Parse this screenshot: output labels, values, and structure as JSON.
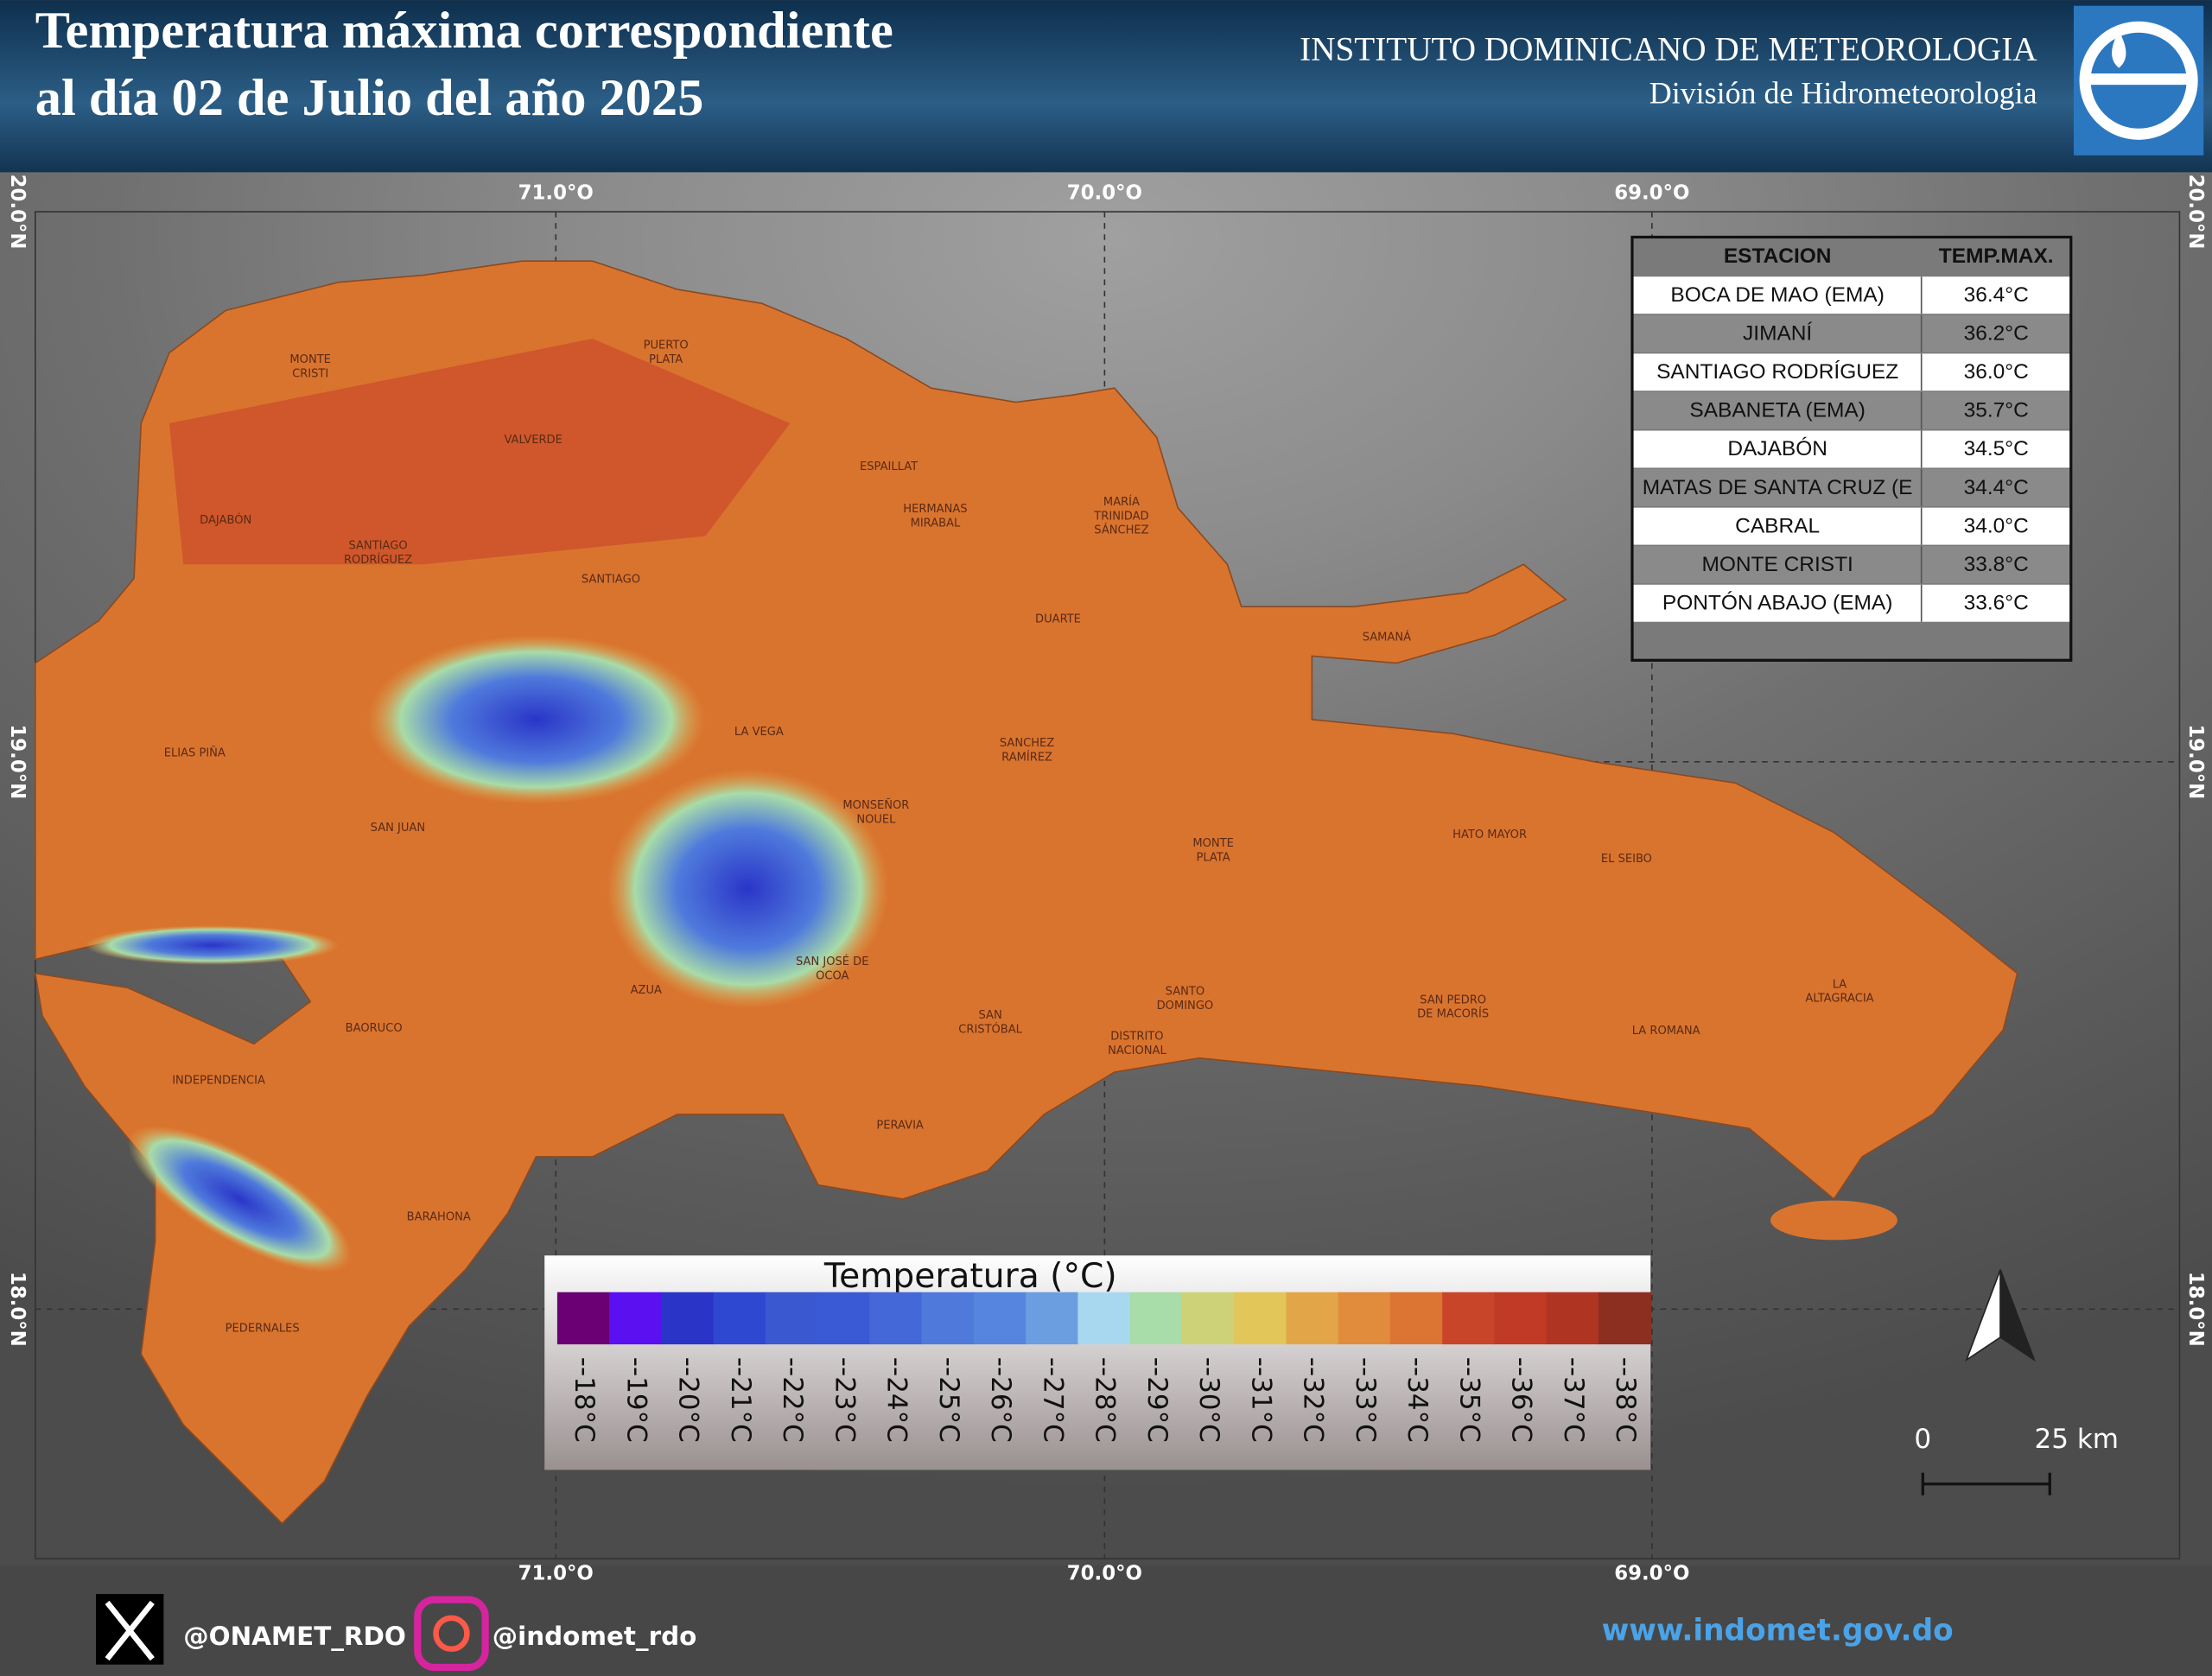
{
  "header": {
    "title_lines": [
      "Temperatura máxima correspondiente",
      "al día 02 de Julio del año 2025"
    ],
    "institute": "INSTITUTO DOMINICANO DE METEOROLOGIA",
    "division": "División de Hidrometeorologia"
  },
  "map": {
    "longitudes": [
      "71.0°O",
      "70.0°O",
      "69.0°O"
    ],
    "latitudes": [
      "20.0°N",
      "19.0°N",
      "18.0°N"
    ],
    "labels": [
      [
        "MONTE",
        "CRISTI"
      ],
      [
        "PUERTO",
        "PLATA"
      ],
      [
        "VALVERDE"
      ],
      [
        "ESPAILLAT"
      ],
      [
        "HERMANAS",
        "MIRABAL"
      ],
      [
        "MARÍA",
        "TRINIDAD",
        "SÁNCHEZ"
      ],
      [
        "DAJABÓN"
      ],
      [
        "SANTIAGO",
        "RODRÍGUEZ"
      ],
      [
        "SANTIAGO"
      ],
      [
        "DUARTE"
      ],
      [
        "SAMANÁ"
      ],
      [
        "LA VEGA"
      ],
      [
        "SANCHEZ",
        "RAMÍREZ"
      ],
      [
        "ELIAS PIÑA"
      ],
      [
        "MONSEÑOR",
        "NOUEL"
      ],
      [
        "SAN JUAN"
      ],
      [
        "HATO MAYOR"
      ],
      [
        "MONTE",
        "PLATA"
      ],
      [
        "EL SEIBO"
      ],
      [
        "SAN JOSÉ DE",
        "OCOA"
      ],
      [
        "AZUA"
      ],
      [
        "SANTO",
        "DOMINGO"
      ],
      [
        "LA",
        "ALTAGRACIA"
      ],
      [
        "SAN PEDRO",
        "DE MACORÍS"
      ],
      [
        "SAN",
        "CRISTÓBAL"
      ],
      [
        "BAORUCO"
      ],
      [
        "LA ROMANA"
      ],
      [
        "DISTRITO",
        "NACIONAL"
      ],
      [
        "INDEPENDENCIA"
      ],
      [
        "PERAVIA"
      ],
      [
        "BARAHONA"
      ],
      [
        "PEDERNALES"
      ]
    ]
  },
  "table": {
    "header": [
      "ESTACION",
      "TEMP.MAX."
    ],
    "rows": [
      [
        "BOCA DE MAO (EMA)",
        "36.4°C"
      ],
      [
        "JIMANÍ",
        "36.2°C"
      ],
      [
        "SANTIAGO RODRÍGUEZ",
        "36.0°C"
      ],
      [
        "SABANETA (EMA)",
        "35.7°C"
      ],
      [
        "DAJABÓN",
        "34.5°C"
      ],
      [
        "MATAS DE SANTA CRUZ (E",
        "34.4°C"
      ],
      [
        "CABRAL",
        "34.0°C"
      ],
      [
        "MONTE CRISTI",
        "33.8°C"
      ],
      [
        "PONTÓN ABAJO (EMA)",
        "33.6°C"
      ]
    ]
  },
  "legend": {
    "title": "Temperatura (°C)",
    "items": [
      {
        "label": "--18°C",
        "color": "#6a0073"
      },
      {
        "label": "--19°C",
        "color": "#5a10f0"
      },
      {
        "label": "--20°C",
        "color": "#2a35c8"
      },
      {
        "label": "--21°C",
        "color": "#2f48d2"
      },
      {
        "label": "--22°C",
        "color": "#3a58d0"
      },
      {
        "label": "--23°C",
        "color": "#3a5ad5"
      },
      {
        "label": "--24°C",
        "color": "#4468d8"
      },
      {
        "label": "--25°C",
        "color": "#4f7adc"
      },
      {
        "label": "--26°C",
        "color": "#5585de"
      },
      {
        "label": "--27°C",
        "color": "#6a9ee0"
      },
      {
        "label": "--28°C",
        "color": "#a8d8f0"
      },
      {
        "label": "--29°C",
        "color": "#a8dca8"
      },
      {
        "label": "--30°C",
        "color": "#cdd278"
      },
      {
        "label": "--31°C",
        "color": "#e2c65a"
      },
      {
        "label": "--32°C",
        "color": "#e2a648"
      },
      {
        "label": "--33°C",
        "color": "#e08c3c"
      },
      {
        "label": "--34°C",
        "color": "#dc7434"
      },
      {
        "label": "--35°C",
        "color": "#c8452a"
      },
      {
        "label": "--36°C",
        "color": "#c03a26"
      },
      {
        "label": "--37°C",
        "color": "#b03422"
      },
      {
        "label": "--38°C",
        "color": "#8c2e20"
      }
    ]
  },
  "scale": {
    "start": "0",
    "end": "25 km"
  },
  "footer": {
    "x_handle": "@ONAMET_RDO",
    "instagram_handle": "@indomet_rdo",
    "website": "www.indomet.gov.do"
  }
}
